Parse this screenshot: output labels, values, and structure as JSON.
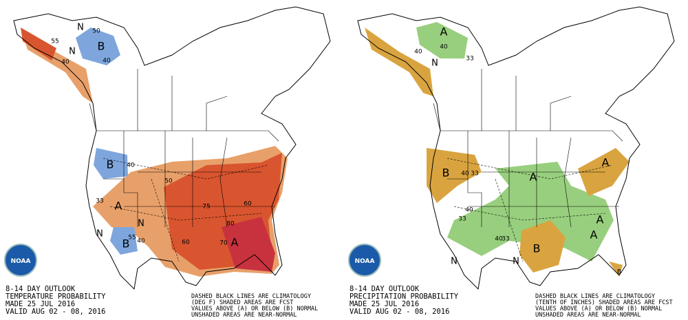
{
  "panels": [
    {
      "caption": [
        "8-14 DAY OUTLOOK",
        "TEMPERATURE PROBABILITY",
        "MADE  25 JUL 2016",
        "VALID  AUG 02 - 08, 2016"
      ],
      "note": [
        "DASHED BLACK LINES ARE CLIMATOLOGY",
        "(DEG F) SHADED AREAS ARE FCST",
        "VALUES ABOVE (A) OR BELOW (B) NORMAL",
        "UNSHADED AREAS ARE NEAR-NORMAL"
      ],
      "logo": "NOAA",
      "labels": [
        "B",
        "N",
        "50",
        "40",
        "N",
        "55",
        "40",
        "B",
        "40",
        "A",
        "33",
        "N",
        "B",
        "N",
        "55",
        "50",
        "60",
        "70",
        "60",
        "40",
        "A",
        "75",
        "80"
      ]
    },
    {
      "caption": [
        "8-14 DAY OUTLOOK",
        "PRECIPITATION PROBABILITY",
        "MADE  25 JUL 2016",
        "VALID  AUG 02 - 08, 2016"
      ],
      "note": [
        "DASHED BLACK LINES ARE CLIMATOLOGY",
        "(TENTH OF INCHES) SHADED AREAS ARE FCST",
        "VALUES ABOVE (A) OR BELOW (B) NORMAL",
        "UNSHADED AREAS ARE NEAR-NORMAL"
      ],
      "logo": "NOAA",
      "labels": [
        "A",
        "40",
        "33",
        "N",
        "40",
        "B",
        "40",
        "33",
        "A",
        "A",
        "A",
        "33",
        "40",
        "40",
        "33",
        "B",
        "A",
        "N",
        "N",
        "B"
      ]
    }
  ]
}
